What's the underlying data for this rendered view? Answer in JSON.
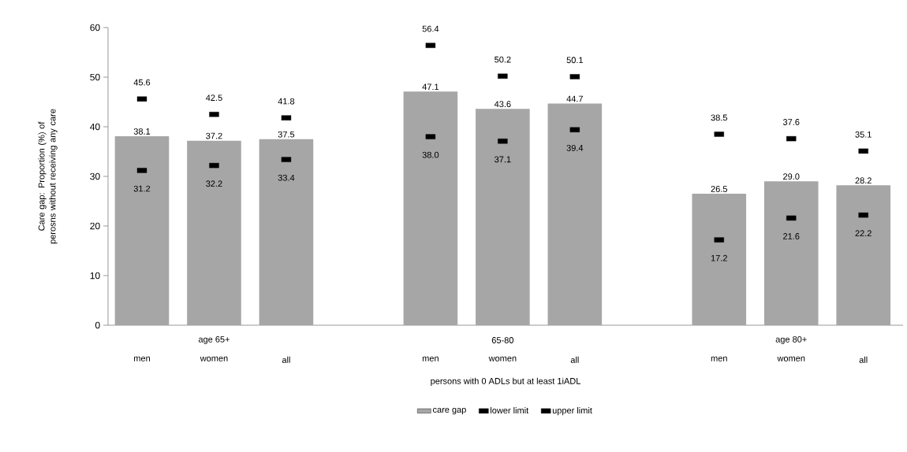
{
  "chart_data": {
    "type": "bar",
    "ylabel": "Care gap: Proportion (%) of perosns without receiving any care",
    "xlabel": "persons with 0 ADLs but at least 1iADL",
    "categories": [
      "men",
      "women",
      "all",
      null,
      "men",
      "women",
      "all",
      null,
      "men",
      "women",
      "all"
    ],
    "annotations": [
      "age 65+",
      "65-80",
      "age 80+"
    ],
    "series": [
      {
        "name": "care gap",
        "color": "#a6a6a6",
        "values": [
          38.1,
          37.2,
          37.5,
          null,
          47.1,
          43.6,
          44.7,
          null,
          26.5,
          29.0,
          28.2
        ],
        "value_labels": [
          "38.1",
          "37.2",
          "37.5",
          null,
          "47.1",
          "43.6",
          "44.7",
          null,
          "26.5",
          "29.0",
          "28.2"
        ]
      },
      {
        "name": "lower limit",
        "type": "scatter",
        "color": "#000000",
        "values": [
          31.2,
          32.2,
          33.4,
          null,
          38.0,
          37.1,
          39.4,
          null,
          17.2,
          21.6,
          22.2
        ],
        "value_labels": [
          "31.2",
          "32.2",
          "33.4",
          null,
          "38.0",
          "37.1",
          "39.4",
          null,
          "17.2",
          "21.6",
          "22.2"
        ]
      },
      {
        "name": "upper limit",
        "type": "scatter",
        "color": "#000000",
        "values": [
          45.6,
          42.5,
          41.8,
          null,
          56.4,
          50.2,
          50.1,
          null,
          38.5,
          37.6,
          35.1
        ],
        "value_labels": [
          "45.6",
          "42.5",
          "41.8",
          null,
          "56.4",
          "50.2",
          "50.1",
          null,
          "38.5",
          "37.6",
          "35.1"
        ]
      }
    ],
    "ylim": [
      0,
      60
    ],
    "yticks": [
      0,
      10,
      20,
      30,
      40,
      50,
      60
    ],
    "legend": "bottom"
  }
}
